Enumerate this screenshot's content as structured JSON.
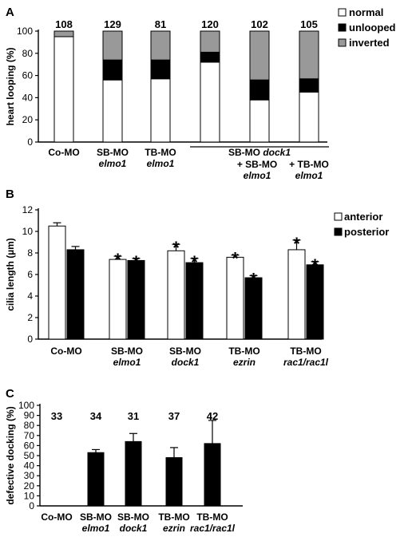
{
  "chart_data": [
    {
      "panel": "A",
      "type": "bar",
      "stacked": true,
      "ylabel": "heart looping (%)",
      "ylim": [
        0,
        100
      ],
      "yticks": [
        "0",
        "20",
        "40",
        "60",
        "80",
        "100"
      ],
      "categories": [
        [
          "Co-MO"
        ],
        [
          "SB-MO",
          "elmo1"
        ],
        [
          "TB-MO",
          "elmo1"
        ],
        [
          ""
        ],
        [
          "+ SB-MO",
          "elmo1"
        ],
        [
          "+ TB-MO",
          "elmo1"
        ]
      ],
      "group_label": "SB-MO dock1",
      "n_labels": [
        "108",
        "129",
        "81",
        "120",
        "102",
        "105"
      ],
      "series": [
        {
          "name": "normal",
          "color": "#ffffff",
          "values": [
            95,
            56,
            57,
            72,
            38,
            45
          ]
        },
        {
          "name": "unlooped",
          "color": "#000000",
          "values": [
            0,
            18,
            17,
            9,
            18,
            12
          ]
        },
        {
          "name": "inverted",
          "color": "#999999",
          "values": [
            5,
            26,
            26,
            19,
            44,
            43
          ]
        }
      ],
      "legend_position": "top-right"
    },
    {
      "panel": "B",
      "type": "bar",
      "ylabel": "cilia length (µm)",
      "ylim": [
        0,
        12
      ],
      "yticks": [
        "0",
        "2",
        "4",
        "6",
        "8",
        "10",
        "12"
      ],
      "categories": [
        [
          "Co-MO"
        ],
        [
          "SB-MO",
          "elmo1"
        ],
        [
          "SB-MO",
          "dock1"
        ],
        [
          "TB-MO",
          "ezrin"
        ],
        [
          "TB-MO",
          "rac1/rac1l"
        ]
      ],
      "series": [
        {
          "name": "anterior",
          "color": "#ffffff",
          "values": [
            10.5,
            7.4,
            8.2,
            7.6,
            8.3
          ],
          "errors": [
            0.3,
            0.3,
            0.6,
            0.2,
            0.9
          ],
          "sig": [
            "",
            "*",
            "*",
            "*",
            "*"
          ]
        },
        {
          "name": "posterior",
          "color": "#000000",
          "values": [
            8.3,
            7.3,
            7.1,
            5.7,
            6.9
          ],
          "errors": [
            0.3,
            0.2,
            0.4,
            0.2,
            0.3
          ],
          "sig": [
            "",
            "*",
            "*",
            "*",
            "*"
          ]
        }
      ],
      "legend_position": "top-right"
    },
    {
      "panel": "C",
      "type": "bar",
      "ylabel": "defective docking (%)",
      "ylim": [
        0,
        100
      ],
      "yticks": [
        "0",
        "10",
        "20",
        "30",
        "40",
        "50",
        "60",
        "70",
        "80",
        "90",
        "100"
      ],
      "categories": [
        [
          "Co-MO"
        ],
        [
          "SB-MO",
          "elmo1"
        ],
        [
          "SB-MO",
          "dock1"
        ],
        [
          "TB-MO",
          "ezrin"
        ],
        [
          "TB-MO",
          "rac1/rac1l"
        ]
      ],
      "n_labels": [
        "33",
        "34",
        "31",
        "37",
        "42"
      ],
      "series": [
        {
          "name": "",
          "color": "#000000",
          "values": [
            0,
            53,
            64,
            48,
            62
          ],
          "errors": [
            0,
            3,
            8,
            10,
            23
          ]
        }
      ]
    }
  ]
}
